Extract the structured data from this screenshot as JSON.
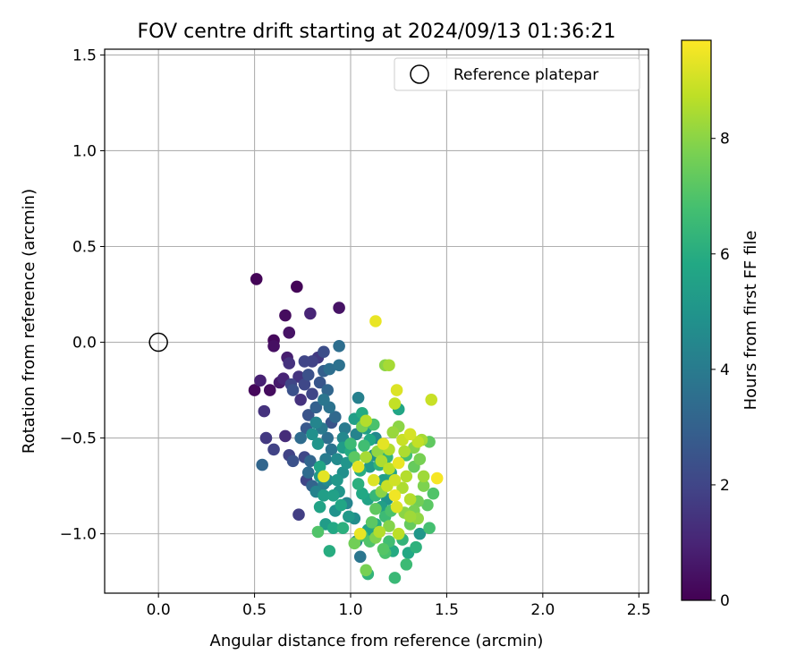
{
  "chart_data": {
    "type": "scatter",
    "title": "FOV centre drift starting at 2024/09/13 01:36:21",
    "xlabel": "Angular distance from reference (arcmin)",
    "ylabel": "Rotation from reference (arcmin)",
    "xlim": [
      -0.28,
      2.55
    ],
    "ylim": [
      -1.31,
      1.53
    ],
    "xticks": [
      0.0,
      0.5,
      1.0,
      1.5,
      2.0,
      2.5
    ],
    "xtick_labels": [
      "0.0",
      "0.5",
      "1.0",
      "1.5",
      "2.0",
      "2.5"
    ],
    "yticks": [
      -1.0,
      -0.5,
      0.0,
      0.5,
      1.0,
      1.5
    ],
    "ytick_labels": [
      "−1.0",
      "−0.5",
      "0.0",
      "0.5",
      "1.0",
      "1.5"
    ],
    "grid": true,
    "legend": {
      "position": "top-right",
      "entries": [
        "Reference platepar"
      ]
    },
    "reference_point": {
      "x": 0.0,
      "y": 0.0
    },
    "colorbar": {
      "label": "Hours from first FF file",
      "range": [
        0,
        9.7
      ],
      "ticks": [
        0,
        2,
        4,
        6,
        8
      ],
      "tick_labels": [
        "0",
        "2",
        "4",
        "6",
        "8"
      ],
      "colormap": "viridis"
    },
    "points": [
      [
        0.51,
        0.33,
        0.1
      ],
      [
        0.72,
        0.29,
        0.1
      ],
      [
        0.94,
        0.18,
        0.5
      ],
      [
        0.79,
        0.15,
        1.0
      ],
      [
        0.66,
        0.14,
        0.3
      ],
      [
        0.68,
        0.05,
        0.5
      ],
      [
        0.6,
        0.01,
        0.2
      ],
      [
        0.6,
        -0.02,
        0.4
      ],
      [
        0.67,
        -0.08,
        0.8
      ],
      [
        0.68,
        -0.11,
        1.4
      ],
      [
        0.53,
        -0.2,
        0.9
      ],
      [
        0.5,
        -0.25,
        0.2
      ],
      [
        0.58,
        -0.25,
        0.3
      ],
      [
        0.63,
        -0.21,
        0.7
      ],
      [
        0.65,
        -0.19,
        1.0
      ],
      [
        0.55,
        -0.36,
        1.4
      ],
      [
        0.56,
        -0.5,
        1.6
      ],
      [
        0.6,
        -0.56,
        1.9
      ],
      [
        0.54,
        -0.64,
        3.2
      ],
      [
        0.66,
        -0.49,
        1.2
      ],
      [
        0.68,
        -0.59,
        1.9
      ],
      [
        0.7,
        -0.62,
        2.4
      ],
      [
        0.73,
        -0.9,
        1.8
      ],
      [
        0.69,
        -0.22,
        2.0
      ],
      [
        0.7,
        -0.25,
        2.4
      ],
      [
        0.73,
        -0.18,
        1.5
      ],
      [
        0.76,
        -0.1,
        2.0
      ],
      [
        0.8,
        -0.1,
        1.9
      ],
      [
        0.83,
        -0.08,
        1.6
      ],
      [
        0.86,
        -0.05,
        2.3
      ],
      [
        0.94,
        -0.02,
        3.5
      ],
      [
        0.94,
        -0.12,
        3.6
      ],
      [
        0.89,
        -0.14,
        3.5
      ],
      [
        0.86,
        -0.15,
        2.9
      ],
      [
        0.78,
        -0.17,
        2.4
      ],
      [
        0.76,
        -0.22,
        2.1
      ],
      [
        0.8,
        -0.27,
        2.0
      ],
      [
        0.84,
        -0.21,
        2.6
      ],
      [
        0.88,
        -0.25,
        3.2
      ],
      [
        0.86,
        -0.3,
        3.8
      ],
      [
        0.82,
        -0.34,
        3.0
      ],
      [
        0.78,
        -0.38,
        2.5
      ],
      [
        0.74,
        -0.3,
        1.4
      ],
      [
        0.77,
        -0.45,
        2.7
      ],
      [
        0.74,
        -0.5,
        3.4
      ],
      [
        0.76,
        -0.6,
        2.1
      ],
      [
        0.78,
        -0.68,
        3.4
      ],
      [
        0.77,
        -0.72,
        2.0
      ],
      [
        0.8,
        -0.75,
        3.1
      ],
      [
        0.79,
        -0.62,
        3.2
      ],
      [
        0.83,
        -0.53,
        5.0
      ],
      [
        0.82,
        -0.42,
        4.4
      ],
      [
        0.85,
        -0.45,
        3.9
      ],
      [
        0.88,
        -0.5,
        3.5
      ],
      [
        0.9,
        -0.42,
        2.5
      ],
      [
        0.92,
        -0.39,
        3.3
      ],
      [
        0.89,
        -0.34,
        3.7
      ],
      [
        0.9,
        -0.56,
        3.7
      ],
      [
        0.93,
        -0.61,
        4.6
      ],
      [
        0.87,
        -0.61,
        4.0
      ],
      [
        0.84,
        -0.7,
        5.1
      ],
      [
        0.86,
        -0.8,
        5.4
      ],
      [
        0.84,
        -0.86,
        5.6
      ],
      [
        0.86,
        -0.74,
        4.1
      ],
      [
        0.82,
        -0.78,
        4.3
      ],
      [
        0.93,
        -0.72,
        5.1
      ],
      [
        0.96,
        -0.68,
        4.8
      ],
      [
        0.94,
        -0.78,
        5.0
      ],
      [
        0.92,
        -0.88,
        4.9
      ],
      [
        0.95,
        -0.85,
        5.7
      ],
      [
        0.98,
        -0.84,
        4.4
      ],
      [
        0.99,
        -0.91,
        5.2
      ],
      [
        1.02,
        -0.92,
        4.7
      ],
      [
        0.98,
        -0.63,
        5.0
      ],
      [
        1.0,
        -0.57,
        5.9
      ],
      [
        1.03,
        -0.48,
        4.3
      ],
      [
        1.02,
        -0.4,
        5.4
      ],
      [
        0.97,
        -0.45,
        4.0
      ],
      [
        0.96,
        -0.5,
        4.5
      ],
      [
        1.04,
        -0.29,
        4.2
      ],
      [
        1.06,
        -0.37,
        5.9
      ],
      [
        1.08,
        -0.45,
        5.4
      ],
      [
        1.1,
        -0.51,
        5.8
      ],
      [
        1.12,
        -0.59,
        4.8
      ],
      [
        1.1,
        -0.65,
        5.2
      ],
      [
        1.05,
        -0.67,
        6.0
      ],
      [
        1.04,
        -0.74,
        6.1
      ],
      [
        1.06,
        -0.79,
        5.8
      ],
      [
        1.09,
        -0.82,
        5.6
      ],
      [
        1.13,
        -0.8,
        6.4
      ],
      [
        1.17,
        -0.72,
        5.4
      ],
      [
        1.15,
        -0.64,
        6.2
      ],
      [
        1.19,
        -0.6,
        6.3
      ],
      [
        1.21,
        -0.68,
        5.6
      ],
      [
        1.19,
        -0.82,
        5.0
      ],
      [
        1.16,
        -0.86,
        5.4
      ],
      [
        1.18,
        -0.91,
        6.6
      ],
      [
        1.13,
        -0.95,
        6.0
      ],
      [
        1.09,
        -0.98,
        5.6
      ],
      [
        1.06,
        -1.01,
        6.8
      ],
      [
        1.1,
        -1.04,
        7.0
      ],
      [
        1.03,
        -1.04,
        4.5
      ],
      [
        1.05,
        -1.12,
        3.8
      ],
      [
        1.08,
        -1.19,
        7.7
      ],
      [
        1.09,
        -1.21,
        6.3
      ],
      [
        1.17,
        -1.08,
        7.1
      ],
      [
        1.2,
        -1.04,
        6.7
      ],
      [
        1.22,
        -1.09,
        5.9
      ],
      [
        1.23,
        -1.23,
        6.5
      ],
      [
        1.29,
        -1.16,
        6.6
      ],
      [
        1.3,
        -1.1,
        5.8
      ],
      [
        1.34,
        -1.07,
        6.2
      ],
      [
        1.36,
        -1.0,
        5.1
      ],
      [
        1.41,
        -0.97,
        6.8
      ],
      [
        1.31,
        -0.95,
        7.4
      ],
      [
        1.28,
        -0.89,
        8.0
      ],
      [
        1.24,
        -0.86,
        9.2
      ],
      [
        1.31,
        -0.82,
        8.6
      ],
      [
        1.35,
        -0.83,
        7.6
      ],
      [
        1.4,
        -0.85,
        7.2
      ],
      [
        1.43,
        -0.79,
        7.0
      ],
      [
        1.45,
        -0.71,
        9.6
      ],
      [
        1.38,
        -0.7,
        8.3
      ],
      [
        1.33,
        -0.65,
        7.4
      ],
      [
        1.36,
        -0.61,
        7.7
      ],
      [
        1.28,
        -0.57,
        8.5
      ],
      [
        1.27,
        -0.51,
        8.9
      ],
      [
        1.31,
        -0.48,
        9.1
      ],
      [
        1.35,
        -0.52,
        8.8
      ],
      [
        1.37,
        -0.51,
        8.4
      ],
      [
        1.41,
        -0.52,
        7.3
      ],
      [
        1.42,
        -0.3,
        8.9
      ],
      [
        1.25,
        -0.35,
        5.7
      ],
      [
        1.22,
        -0.47,
        8.2
      ],
      [
        1.25,
        -0.44,
        8.0
      ],
      [
        1.2,
        -0.56,
        8.6
      ],
      [
        1.17,
        -0.53,
        9.3
      ],
      [
        1.14,
        -0.57,
        8.1
      ],
      [
        1.16,
        -0.62,
        8.5
      ],
      [
        1.2,
        -0.66,
        8.7
      ],
      [
        1.25,
        -0.63,
        9.4
      ],
      [
        1.23,
        -0.72,
        9.0
      ],
      [
        1.19,
        -0.75,
        8.9
      ],
      [
        1.27,
        -0.76,
        8.5
      ],
      [
        1.23,
        -0.8,
        9.5
      ],
      [
        1.16,
        -0.78,
        8.0
      ],
      [
        1.12,
        -0.72,
        9.2
      ],
      [
        1.04,
        -0.65,
        9.3
      ],
      [
        1.08,
        -0.6,
        8.4
      ],
      [
        1.08,
        -0.41,
        8.6
      ],
      [
        1.06,
        -0.44,
        7.7
      ],
      [
        1.23,
        -0.32,
        8.8
      ],
      [
        1.24,
        -0.25,
        9.2
      ],
      [
        1.18,
        -0.12,
        8.0
      ],
      [
        1.2,
        -0.12,
        8.4
      ],
      [
        1.13,
        0.11,
        9.4
      ],
      [
        0.86,
        -0.7,
        9.3
      ],
      [
        1.05,
        -1.0,
        9.4
      ],
      [
        1.02,
        -1.05,
        7.6
      ],
      [
        1.11,
        -0.94,
        7.2
      ],
      [
        1.15,
        -0.99,
        8.6
      ],
      [
        1.2,
        -0.96,
        7.9
      ],
      [
        1.25,
        -1.0,
        8.7
      ],
      [
        1.31,
        -0.91,
        8.3
      ],
      [
        1.35,
        -0.92,
        8.1
      ],
      [
        1.29,
        -0.7,
        8.6
      ],
      [
        1.21,
        -0.88,
        6.9
      ],
      [
        1.13,
        -0.87,
        7.3
      ],
      [
        0.91,
        -0.97,
        5.8
      ],
      [
        0.83,
        -0.99,
        7.0
      ],
      [
        0.89,
        -1.09,
        6.0
      ],
      [
        0.96,
        -0.97,
        6.1
      ],
      [
        0.87,
        -0.95,
        5.3
      ],
      [
        0.8,
        -0.48,
        4.8
      ],
      [
        0.84,
        -0.65,
        5.7
      ],
      [
        0.88,
        -0.72,
        4.6
      ],
      [
        0.91,
        -0.8,
        5.5
      ],
      [
        0.96,
        -0.55,
        5.3
      ],
      [
        1.0,
        -0.53,
        6.6
      ],
      [
        1.02,
        -0.6,
        7.2
      ],
      [
        1.07,
        -0.54,
        6.7
      ],
      [
        1.13,
        -0.5,
        4.5
      ],
      [
        1.12,
        -0.43,
        6.9
      ],
      [
        1.29,
        -0.59,
        6.8
      ],
      [
        1.33,
        -0.55,
        7.9
      ],
      [
        1.38,
        -0.75,
        7.8
      ],
      [
        1.33,
        -0.88,
        7.7
      ],
      [
        1.27,
        -1.03,
        6.3
      ],
      [
        1.18,
        -1.1,
        6.9
      ],
      [
        1.13,
        -1.02,
        7.8
      ]
    ]
  }
}
